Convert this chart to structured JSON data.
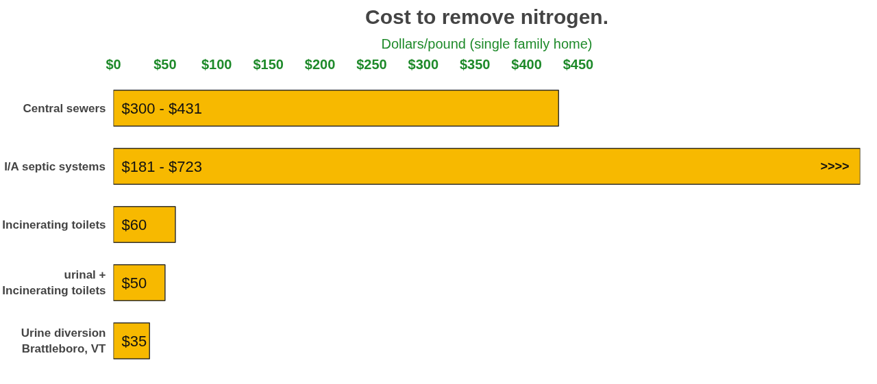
{
  "chart_data": {
    "type": "bar",
    "orientation": "horizontal",
    "title": "Cost to remove nitrogen.",
    "subtitle": "Dollars/pound (single family home)",
    "categories": [
      "Central sewers",
      "I/A septic systems",
      "Incinerating toilets",
      "urinal +\nIncinerating toilets",
      "Urine diversion\nBrattleboro, VT"
    ],
    "values": [
      431,
      723,
      60,
      50,
      35
    ],
    "value_labels": [
      null,
      null,
      "$60",
      "$50",
      "$35"
    ],
    "color": "#f7b900",
    "xlim": [
      0,
      723
    ],
    "xticks": [
      {
        "value": 0,
        "label": "$0"
      },
      {
        "value": 50,
        "label": "$50"
      },
      {
        "value": 100,
        "label": "$100"
      },
      {
        "value": 150,
        "label": "$150"
      },
      {
        "value": 200,
        "label": "$200"
      },
      {
        "value": 250,
        "label": "$250"
      },
      {
        "value": 300,
        "label": "$300"
      },
      {
        "value": 350,
        "label": "$350"
      },
      {
        "value": 400,
        "label": "$400"
      },
      {
        "value": 450,
        "label": "$450"
      }
    ],
    "annotations": [
      "$300 - $431",
      "$181 - $723",
      ">>>>"
    ],
    "grid": false
  }
}
